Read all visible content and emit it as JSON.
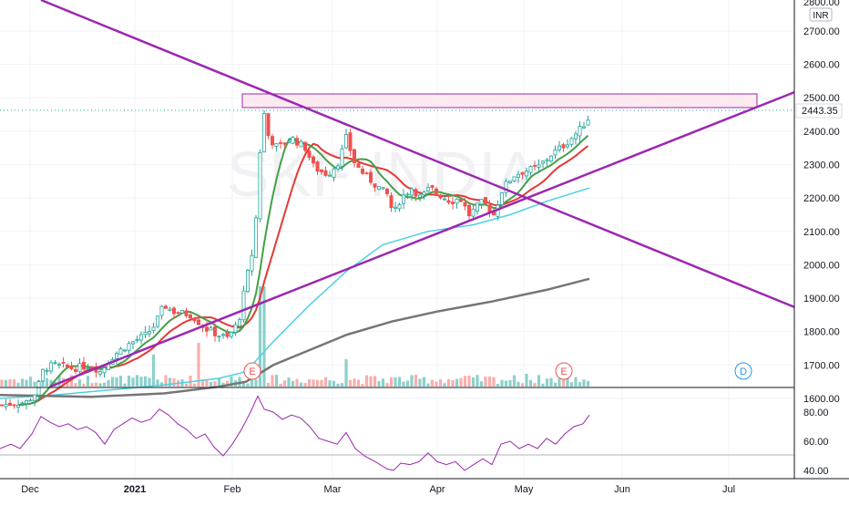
{
  "header": {
    "currency": "INR",
    "top_price_partial": "2800.00"
  },
  "watermark": "SKF INDIA",
  "colors": {
    "up": "#26a69a",
    "down": "#ef5350",
    "ma_red": "#e53935",
    "ma_green": "#43a047",
    "ma_teal": "#4dd0e1",
    "ma_gray": "#757575",
    "trendline": "#9c27b0",
    "zone_fill": "#fce4ec",
    "zone_stroke": "#9c27b0",
    "rsi": "#9c27b0",
    "earnings": "#ef5350",
    "dividend": "#2196f3",
    "grid": "#f0f3fa"
  },
  "price_axis": {
    "ticks": [
      "2700.00",
      "2600.00",
      "2500.00",
      "2400.00",
      "2300.00",
      "2200.00",
      "2100.00",
      "2000.00",
      "1900.00",
      "1800.00",
      "1700.00",
      "1600.00"
    ],
    "last_price": "2443.35"
  },
  "time_axis": {
    "labels": [
      "Dec",
      "2021",
      "Feb",
      "Mar",
      "Apr",
      "May",
      "Jun",
      "Jul"
    ]
  },
  "markers": {
    "earnings_1": "E",
    "earnings_2": "E",
    "dividend": "D"
  },
  "rsi_axis": {
    "ticks": [
      "80.00",
      "60.00",
      "40.00"
    ]
  },
  "chart_data": {
    "type": "candlestick",
    "ylim": [
      1560,
      2810
    ],
    "last_price": 2443.35,
    "resistance_zone": [
      2450,
      2495
    ],
    "moving_averages": [
      {
        "color": "red"
      },
      {
        "color": "green"
      },
      {
        "color": "teal"
      },
      {
        "color": "gray"
      }
    ],
    "rsi": {
      "ylim": [
        35,
        90
      ],
      "reference_levels": [
        50
      ]
    }
  }
}
